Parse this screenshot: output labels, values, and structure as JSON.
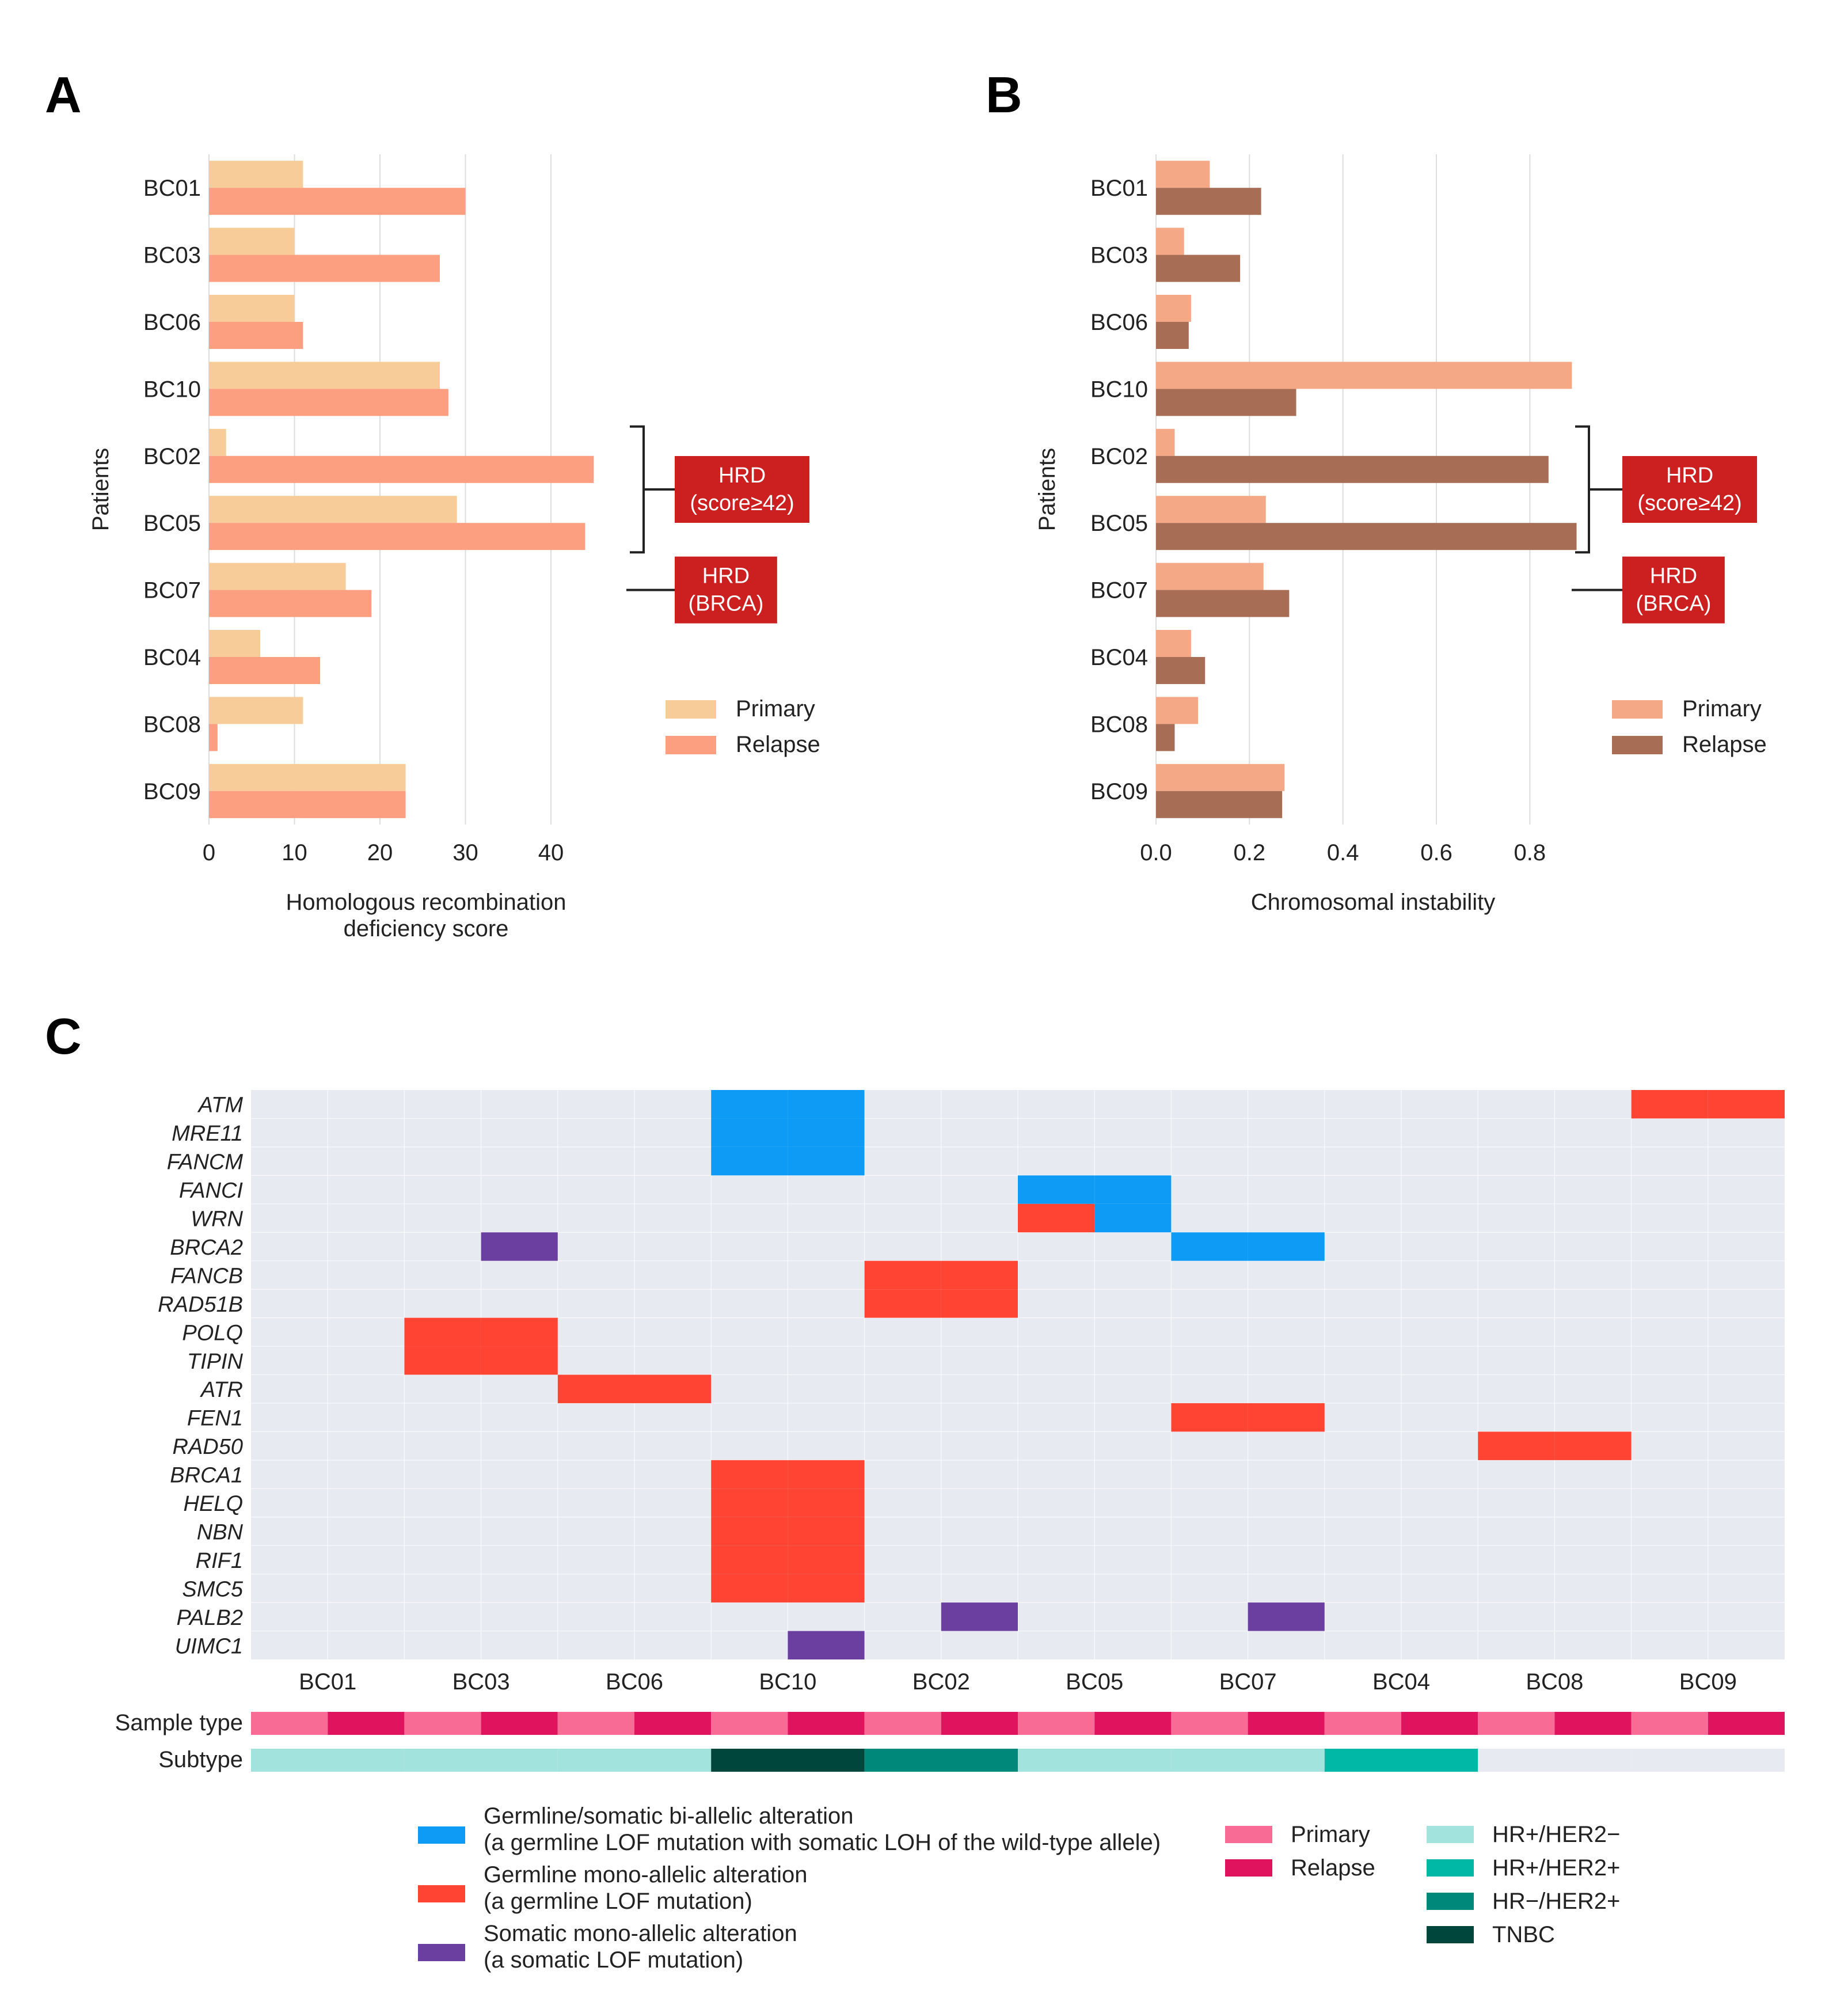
{
  "panel_labels": [
    "A",
    "B",
    "C"
  ],
  "colors": {
    "primaryA": "#F7CC98",
    "relapseA": "#FC9E80",
    "primaryB": "#F4A886",
    "relapseB": "#A86E55",
    "grid": "#dddddd",
    "hrd_box": "#CC1F1F",
    "heatmap_bg": "#E8EAF2",
    "biallelic": "#0D9BF5",
    "germline_mono": "#FF4433",
    "somatic_mono": "#6B3FA0",
    "sample_primary": "#F76B94",
    "sample_relapse": "#E0135F",
    "hr_pos_her2_neg": "#A2E3DD",
    "hr_pos_her2_pos": "#00B8A5",
    "hr_neg_her2_pos": "#00897B",
    "tnbc": "#00463D"
  },
  "hrd_labels": {
    "score": [
      "HRD",
      "(score≥42)"
    ],
    "brca": [
      "HRD",
      "(BRCA)"
    ]
  },
  "chart_data": [
    {
      "type": "bar",
      "orientation": "horizontal",
      "panel": "A",
      "categories": [
        "BC01",
        "BC03",
        "BC06",
        "BC10",
        "BC02",
        "BC05",
        "BC07",
        "BC04",
        "BC08",
        "BC09"
      ],
      "series": [
        {
          "name": "Primary",
          "values": [
            11,
            10,
            10,
            27,
            2,
            29,
            16,
            6,
            11,
            23
          ]
        },
        {
          "name": "Relapse",
          "values": [
            30,
            27,
            11,
            28,
            45,
            44,
            19,
            13,
            1,
            23
          ]
        }
      ],
      "xlim": [
        0,
        47
      ],
      "xticks": [
        "0",
        "10",
        "20",
        "30",
        "40"
      ],
      "xtick_values": [
        0,
        10,
        20,
        30,
        40
      ],
      "xlabel": [
        "Homologous recombination",
        "deficiency score"
      ],
      "ylabel": "Patients",
      "legend": [
        "Primary",
        "Relapse"
      ],
      "hrd_score_rows": [
        "BC02",
        "BC05"
      ],
      "hrd_brca_rows": [
        "BC07"
      ]
    },
    {
      "type": "bar",
      "orientation": "horizontal",
      "panel": "B",
      "categories": [
        "BC01",
        "BC03",
        "BC06",
        "BC10",
        "BC02",
        "BC05",
        "BC07",
        "BC04",
        "BC08",
        "BC09"
      ],
      "series": [
        {
          "name": "Primary",
          "values": [
            0.115,
            0.06,
            0.075,
            0.89,
            0.04,
            0.235,
            0.23,
            0.075,
            0.09,
            0.275
          ]
        },
        {
          "name": "Relapse",
          "values": [
            0.225,
            0.18,
            0.07,
            0.3,
            0.84,
            0.9,
            0.285,
            0.105,
            0.04,
            0.27
          ]
        }
      ],
      "xlim": [
        0,
        0.94
      ],
      "xticks": [
        "0.0",
        "0.2",
        "0.4",
        "0.6",
        "0.8"
      ],
      "xtick_values": [
        0,
        0.2,
        0.4,
        0.6,
        0.8
      ],
      "xlabel": [
        "Chromosomal instability"
      ],
      "ylabel": "Patients",
      "legend": [
        "Primary",
        "Relapse"
      ],
      "hrd_score_rows": [
        "BC02",
        "BC05"
      ],
      "hrd_brca_rows": [
        "BC07"
      ]
    },
    {
      "type": "heatmap",
      "panel": "C",
      "genes": [
        "ATM",
        "MRE11",
        "FANCM",
        "FANCI",
        "WRN",
        "BRCA2",
        "FANCB",
        "RAD51B",
        "POLQ",
        "TIPIN",
        "ATR",
        "FEN1",
        "RAD50",
        "BRCA1",
        "HELQ",
        "NBN",
        "RIF1",
        "SMC5",
        "PALB2",
        "UIMC1"
      ],
      "patients": [
        "BC01",
        "BC03",
        "BC06",
        "BC10",
        "BC02",
        "BC05",
        "BC07",
        "BC04",
        "BC08",
        "BC09"
      ],
      "cell_legend": {
        "B": "biallelic",
        "G": "germline_mono",
        "S": "somatic_mono"
      },
      "cells": [
        {
          "gene": "ATM",
          "cols": [
            6,
            7
          ],
          "type": "B"
        },
        {
          "gene": "ATM",
          "cols": [
            18,
            19
          ],
          "type": "G"
        },
        {
          "gene": "MRE11",
          "cols": [
            6,
            7
          ],
          "type": "B"
        },
        {
          "gene": "FANCM",
          "cols": [
            6,
            7
          ],
          "type": "B"
        },
        {
          "gene": "FANCI",
          "cols": [
            10,
            11
          ],
          "type": "B"
        },
        {
          "gene": "WRN",
          "cols": [
            10
          ],
          "type": "G"
        },
        {
          "gene": "WRN",
          "cols": [
            11
          ],
          "type": "B"
        },
        {
          "gene": "BRCA2",
          "cols": [
            3
          ],
          "type": "S"
        },
        {
          "gene": "BRCA2",
          "cols": [
            12,
            13
          ],
          "type": "B"
        },
        {
          "gene": "FANCB",
          "cols": [
            8,
            9
          ],
          "type": "G"
        },
        {
          "gene": "RAD51B",
          "cols": [
            8,
            9
          ],
          "type": "G"
        },
        {
          "gene": "POLQ",
          "cols": [
            2,
            3
          ],
          "type": "G"
        },
        {
          "gene": "TIPIN",
          "cols": [
            2,
            3
          ],
          "type": "G"
        },
        {
          "gene": "ATR",
          "cols": [
            4,
            5
          ],
          "type": "G"
        },
        {
          "gene": "FEN1",
          "cols": [
            12,
            13
          ],
          "type": "G"
        },
        {
          "gene": "RAD50",
          "cols": [
            16,
            17
          ],
          "type": "G"
        },
        {
          "gene": "BRCA1",
          "cols": [
            6,
            7
          ],
          "type": "G"
        },
        {
          "gene": "HELQ",
          "cols": [
            6,
            7
          ],
          "type": "G"
        },
        {
          "gene": "NBN",
          "cols": [
            6,
            7
          ],
          "type": "G"
        },
        {
          "gene": "RIF1",
          "cols": [
            6,
            7
          ],
          "type": "G"
        },
        {
          "gene": "SMC5",
          "cols": [
            6,
            7
          ],
          "type": "G"
        },
        {
          "gene": "PALB2",
          "cols": [
            9
          ],
          "type": "S"
        },
        {
          "gene": "PALB2",
          "cols": [
            13
          ],
          "type": "S"
        },
        {
          "gene": "UIMC1",
          "cols": [
            7
          ],
          "type": "S"
        }
      ],
      "track_labels": [
        "Sample type",
        "Subtype"
      ],
      "subtypes": [
        "hr_pos_her2_neg",
        "hr_pos_her2_neg",
        "hr_pos_her2_neg",
        "tnbc",
        "hr_neg_her2_pos",
        "hr_pos_her2_neg",
        "hr_pos_her2_neg",
        "hr_pos_her2_pos",
        "none",
        "none"
      ],
      "alteration_legend": [
        {
          "key": "biallelic",
          "line1": "Germline/somatic bi-allelic alteration",
          "line2": "(a germline LOF mutation with somatic LOH of the wild-type allele)"
        },
        {
          "key": "germline_mono",
          "line1": "Germline mono-allelic alteration",
          "line2": "(a germline LOF mutation)"
        },
        {
          "key": "somatic_mono",
          "line1": "Somatic mono-allelic alteration",
          "line2": "(a somatic LOF mutation)"
        }
      ],
      "sample_legend": [
        {
          "key": "sample_primary",
          "label": "Primary"
        },
        {
          "key": "sample_relapse",
          "label": "Relapse"
        }
      ],
      "subtype_legend": [
        {
          "key": "hr_pos_her2_neg",
          "label": "HR+/HER2−"
        },
        {
          "key": "hr_pos_her2_pos",
          "label": "HR+/HER2+"
        },
        {
          "key": "hr_neg_her2_pos",
          "label": "HR−/HER2+"
        },
        {
          "key": "tnbc",
          "label": "TNBC"
        }
      ]
    }
  ]
}
